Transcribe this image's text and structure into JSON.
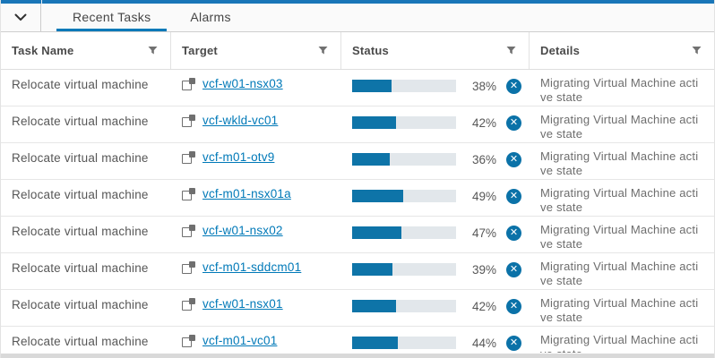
{
  "colors": {
    "accent_blue": "#0079b8",
    "top_strip_blue": "#1976b8",
    "progress_fill": "#0e74a8",
    "progress_track": "#e2e7eb",
    "cancel_icon_blue": "#0b72a8"
  },
  "tabbar": {
    "collapse_icon": "chevron-down",
    "tabs": [
      {
        "label": "Recent Tasks",
        "active": true
      },
      {
        "label": "Alarms",
        "active": false
      }
    ]
  },
  "table": {
    "columns": [
      {
        "label": "Task Name"
      },
      {
        "label": "Target"
      },
      {
        "label": "Status"
      },
      {
        "label": "Details"
      }
    ],
    "rows": [
      {
        "task": "Relocate virtual machine",
        "target": "vcf-w01-nsx03",
        "percent": 38,
        "percent_label": "38%",
        "details": "Migrating Virtual Machine active state"
      },
      {
        "task": "Relocate virtual machine",
        "target": "vcf-wkld-vc01",
        "percent": 42,
        "percent_label": "42%",
        "details": "Migrating Virtual Machine active state"
      },
      {
        "task": "Relocate virtual machine",
        "target": "vcf-m01-otv9",
        "percent": 36,
        "percent_label": "36%",
        "details": "Migrating Virtual Machine active state"
      },
      {
        "task": "Relocate virtual machine",
        "target": "vcf-m01-nsx01a",
        "percent": 49,
        "percent_label": "49%",
        "details": "Migrating Virtual Machine active state"
      },
      {
        "task": "Relocate virtual machine",
        "target": "vcf-w01-nsx02",
        "percent": 47,
        "percent_label": "47%",
        "details": "Migrating Virtual Machine active state"
      },
      {
        "task": "Relocate virtual machine",
        "target": "vcf-m01-sddcm01",
        "percent": 39,
        "percent_label": "39%",
        "details": "Migrating Virtual Machine active state"
      },
      {
        "task": "Relocate virtual machine",
        "target": "vcf-w01-nsx01",
        "percent": 42,
        "percent_label": "42%",
        "details": "Migrating Virtual Machine active state"
      },
      {
        "task": "Relocate virtual machine",
        "target": "vcf-m01-vc01",
        "percent": 44,
        "percent_label": "44%",
        "details": "Migrating Virtual Machine active state"
      }
    ]
  }
}
